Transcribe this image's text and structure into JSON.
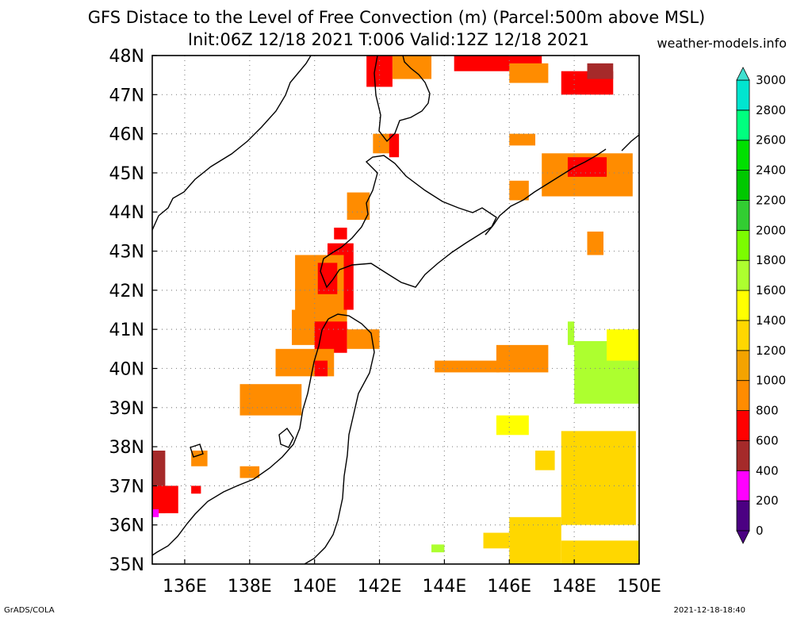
{
  "header": {
    "title_line1": "GFS Distace to the Level of Free Convection (m) (Parcel:500m above MSL)",
    "title_line2": "Init:06Z 12/18 2021 T:006 Valid:12Z 12/18 2021",
    "site": "weather-models.info"
  },
  "footer": {
    "left": "GrADS/COLA",
    "right": "2021-12-18-18:40"
  },
  "map": {
    "lon_range": [
      135,
      150
    ],
    "lat_range": [
      35,
      48
    ],
    "lon_ticks": [
      "136E",
      "138E",
      "140E",
      "142E",
      "144E",
      "146E",
      "148E",
      "150E"
    ],
    "lat_ticks": [
      "35N",
      "36N",
      "37N",
      "38N",
      "39N",
      "40N",
      "41N",
      "42N",
      "43N",
      "44N",
      "45N",
      "46N",
      "47N",
      "48N"
    ],
    "grid": "dotted",
    "coastline_color": "#000000",
    "regions": [
      {
        "level": "600",
        "lon": [
          141.6,
          142.4
        ],
        "lat": [
          47.2,
          48.0
        ]
      },
      {
        "level": "800",
        "lon": [
          142.4,
          143.6
        ],
        "lat": [
          47.4,
          48.0
        ]
      },
      {
        "level": "600",
        "lon": [
          144.3,
          147.0
        ],
        "lat": [
          47.6,
          48.0
        ]
      },
      {
        "level": "800",
        "lon": [
          146.0,
          147.2
        ],
        "lat": [
          47.3,
          47.8
        ]
      },
      {
        "level": "600",
        "lon": [
          147.6,
          149.2
        ],
        "lat": [
          47.0,
          47.6
        ]
      },
      {
        "level": "400",
        "lon": [
          148.4,
          149.2
        ],
        "lat": [
          47.4,
          47.8
        ]
      },
      {
        "level": "800",
        "lon": [
          141.8,
          142.6
        ],
        "lat": [
          45.5,
          46.0
        ]
      },
      {
        "level": "600",
        "lon": [
          142.3,
          142.6
        ],
        "lat": [
          45.4,
          46.0
        ]
      },
      {
        "level": "800",
        "lon": [
          146.0,
          146.8
        ],
        "lat": [
          45.7,
          46.0
        ]
      },
      {
        "level": "800",
        "lon": [
          147.0,
          149.8
        ],
        "lat": [
          44.4,
          45.5
        ]
      },
      {
        "level": "600",
        "lon": [
          147.8,
          149.0
        ],
        "lat": [
          44.9,
          45.4
        ]
      },
      {
        "level": "800",
        "lon": [
          146.0,
          146.6
        ],
        "lat": [
          44.3,
          44.8
        ]
      },
      {
        "level": "600",
        "lon": [
          140.4,
          141.2
        ],
        "lat": [
          41.5,
          43.2
        ]
      },
      {
        "level": "800",
        "lon": [
          139.4,
          140.9
        ],
        "lat": [
          41.2,
          42.9
        ]
      },
      {
        "level": "600",
        "lon": [
          140.1,
          140.7
        ],
        "lat": [
          41.9,
          42.7
        ]
      },
      {
        "level": "800",
        "lon": [
          141.0,
          141.7
        ],
        "lat": [
          43.8,
          44.5
        ]
      },
      {
        "level": "600",
        "lon": [
          140.6,
          141.0
        ],
        "lat": [
          43.3,
          43.6
        ]
      },
      {
        "level": "800",
        "lon": [
          139.3,
          141.0
        ],
        "lat": [
          40.6,
          41.5
        ]
      },
      {
        "level": "600",
        "lon": [
          140.0,
          141.0
        ],
        "lat": [
          40.4,
          41.2
        ]
      },
      {
        "level": "800",
        "lon": [
          141.0,
          142.0
        ],
        "lat": [
          40.5,
          41.0
        ]
      },
      {
        "level": "800",
        "lon": [
          138.8,
          140.6
        ],
        "lat": [
          39.8,
          40.5
        ]
      },
      {
        "level": "600",
        "lon": [
          140.0,
          140.4
        ],
        "lat": [
          39.8,
          40.2
        ]
      },
      {
        "level": "800",
        "lon": [
          137.7,
          139.6
        ],
        "lat": [
          38.8,
          39.6
        ]
      },
      {
        "level": "800",
        "lon": [
          143.7,
          145.7
        ],
        "lat": [
          39.9,
          40.2
        ]
      },
      {
        "level": "800",
        "lon": [
          145.6,
          147.2
        ],
        "lat": [
          39.9,
          40.6
        ]
      },
      {
        "level": "800",
        "lon": [
          136.2,
          136.7
        ],
        "lat": [
          37.5,
          37.9
        ]
      },
      {
        "level": "800",
        "lon": [
          137.7,
          138.3
        ],
        "lat": [
          37.2,
          37.5
        ]
      },
      {
        "level": "400",
        "lon": [
          135.0,
          135.4
        ],
        "lat": [
          36.3,
          37.9
        ]
      },
      {
        "level": "600",
        "lon": [
          135.0,
          135.8
        ],
        "lat": [
          36.3,
          37.0
        ]
      },
      {
        "level": "200",
        "lon": [
          135.0,
          135.2
        ],
        "lat": [
          36.2,
          36.4
        ]
      },
      {
        "level": "600",
        "lon": [
          136.2,
          136.5
        ],
        "lat": [
          36.8,
          37.0
        ]
      },
      {
        "level": "800",
        "lon": [
          148.4,
          148.9
        ],
        "lat": [
          42.9,
          43.5
        ]
      },
      {
        "level": "1600",
        "lon": [
          148.0,
          150.0
        ],
        "lat": [
          39.1,
          40.7
        ]
      },
      {
        "level": "1400",
        "lon": [
          149.0,
          150.0
        ],
        "lat": [
          40.2,
          41.0
        ]
      },
      {
        "level": "1400",
        "lon": [
          145.6,
          146.6
        ],
        "lat": [
          38.3,
          38.8
        ]
      },
      {
        "level": "1200",
        "lon": [
          147.6,
          149.9
        ],
        "lat": [
          36.0,
          38.4
        ]
      },
      {
        "level": "1200",
        "lon": [
          146.8,
          147.4
        ],
        "lat": [
          37.4,
          37.9
        ]
      },
      {
        "level": "1200",
        "lon": [
          146.0,
          147.6
        ],
        "lat": [
          35.0,
          36.2
        ]
      },
      {
        "level": "1200",
        "lon": [
          145.2,
          146.0
        ],
        "lat": [
          35.4,
          35.8
        ]
      },
      {
        "level": "1200",
        "lon": [
          147.6,
          150.0
        ],
        "lat": [
          35.0,
          35.6
        ]
      },
      {
        "level": "1600",
        "lon": [
          143.6,
          144.0
        ],
        "lat": [
          35.3,
          35.5
        ]
      },
      {
        "level": "1600",
        "lon": [
          147.8,
          148.0
        ],
        "lat": [
          40.6,
          41.2
        ]
      }
    ]
  },
  "colorbar": {
    "levels": [
      "0",
      "200",
      "400",
      "600",
      "800",
      "1000",
      "1200",
      "1400",
      "1600",
      "1800",
      "2000",
      "2200",
      "2400",
      "2600",
      "2800",
      "3000"
    ],
    "colors": [
      "#4b0082",
      "#ff00ff",
      "#a52a2a",
      "#ff0000",
      "#ff8c00",
      "#f4a300",
      "#ffd700",
      "#ffff00",
      "#adff2f",
      "#7cfc00",
      "#32cd32",
      "#00c800",
      "#00e000",
      "#00ff7f",
      "#00e5d0",
      "#00ffff"
    ],
    "low_color": "#4b0082",
    "high_color": "#40e0d0"
  }
}
